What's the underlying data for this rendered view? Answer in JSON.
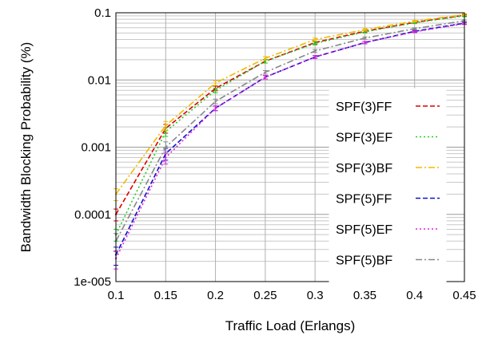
{
  "chart_data": {
    "type": "line",
    "title": "",
    "xlabel": "Traffic Load (Erlangs)",
    "ylabel": "Bandwidth Blocking Probability (%)",
    "x": [
      0.1,
      0.15,
      0.2,
      0.25,
      0.3,
      0.35,
      0.4,
      0.45
    ],
    "xlim": [
      0.1,
      0.45
    ],
    "ylim": [
      1e-05,
      0.1
    ],
    "yscale": "log",
    "x_tick_labels": [
      "0.1",
      "0.15",
      "0.2",
      "0.25",
      "0.3",
      "0.35",
      "0.4",
      "0.45"
    ],
    "y_ticks": [
      1e-05,
      0.0001,
      0.001,
      0.01,
      0.1
    ],
    "y_tick_labels": [
      "1e-005",
      "0.0001",
      "0.001",
      "0.01",
      "0.1"
    ],
    "grid": true,
    "legend_position": "right",
    "error_bars": true,
    "series": [
      {
        "name": "SPF(3)FF",
        "color": "#dd0000",
        "dash": "dashed",
        "values": [
          0.0001,
          0.0019,
          0.0075,
          0.019,
          0.036,
          0.053,
          0.072,
          0.092
        ],
        "err_rel": [
          0.2,
          0.15,
          0.08,
          0.06,
          0.05,
          0.04,
          0.03,
          0.03
        ]
      },
      {
        "name": "SPF(3)EF",
        "color": "#22cc22",
        "dash": "dotted",
        "values": [
          5e-05,
          0.0017,
          0.007,
          0.019,
          0.035,
          0.052,
          0.071,
          0.09
        ],
        "err_rel": [
          0.2,
          0.15,
          0.08,
          0.06,
          0.05,
          0.04,
          0.03,
          0.03
        ]
      },
      {
        "name": "SPF(3)BF",
        "color": "#eebb00",
        "dash": "dashdot",
        "values": [
          0.0002,
          0.0021,
          0.009,
          0.021,
          0.04,
          0.056,
          0.075,
          0.094
        ],
        "err_rel": [
          0.2,
          0.15,
          0.08,
          0.06,
          0.05,
          0.04,
          0.03,
          0.03
        ]
      },
      {
        "name": "SPF(5)FF",
        "color": "#1111cc",
        "dash": "dashed",
        "values": [
          2.5e-05,
          0.0008,
          0.0038,
          0.011,
          0.022,
          0.036,
          0.053,
          0.07
        ],
        "err_rel": [
          0.3,
          0.2,
          0.08,
          0.06,
          0.05,
          0.04,
          0.03,
          0.03
        ]
      },
      {
        "name": "SPF(5)EF",
        "color": "#dd22dd",
        "dash": "dotted",
        "values": [
          2.2e-05,
          0.0007,
          0.0038,
          0.011,
          0.022,
          0.036,
          0.052,
          0.069
        ],
        "err_rel": [
          0.3,
          0.2,
          0.08,
          0.06,
          0.05,
          0.04,
          0.03,
          0.03
        ]
      },
      {
        "name": "SPF(5)BF",
        "color": "#888888",
        "dash": "dashdot",
        "values": [
          4e-05,
          0.001,
          0.0048,
          0.013,
          0.027,
          0.042,
          0.058,
          0.076
        ],
        "err_rel": [
          0.3,
          0.2,
          0.08,
          0.06,
          0.05,
          0.04,
          0.03,
          0.03
        ]
      }
    ]
  }
}
